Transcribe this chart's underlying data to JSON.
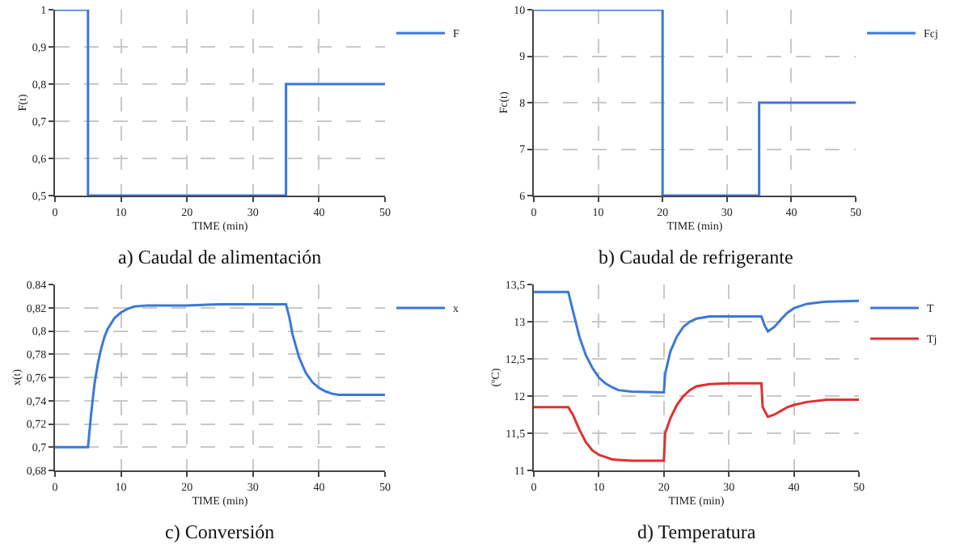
{
  "chart_data": [
    {
      "type": "step",
      "title": "a) Caudal de alimentación",
      "xlabel": "TIME (min)",
      "ylabel": "F(t)",
      "x": [
        0,
        5,
        35,
        50
      ],
      "xlim": [
        0,
        50
      ],
      "ylim": [
        0.5,
        1
      ],
      "xticks": [
        0,
        10,
        20,
        30,
        40,
        50
      ],
      "yticks": [
        {
          "value": 0.5,
          "label": "0,5"
        },
        {
          "value": 0.6,
          "label": "0,6"
        },
        {
          "value": 0.7,
          "label": "0,7"
        },
        {
          "value": 0.8,
          "label": "0,8"
        },
        {
          "value": 0.9,
          "label": "0,9"
        },
        1
      ],
      "grid": true,
      "legend": "top right",
      "series": [
        {
          "name": "F",
          "color": "#3b78d8",
          "values": [
            1,
            0.5,
            0.8,
            0.8
          ]
        }
      ]
    },
    {
      "type": "step",
      "title": "b) Caudal de refrigerante",
      "xlabel": "TIME (min)",
      "ylabel": "Fc(t)",
      "x": [
        0,
        20,
        35,
        50
      ],
      "xlim": [
        0,
        50
      ],
      "ylim": [
        6,
        10
      ],
      "xticks": [
        0,
        10,
        20,
        30,
        40,
        50
      ],
      "yticks": [
        6,
        7,
        8,
        9,
        10
      ],
      "grid": true,
      "legend": "top right",
      "series": [
        {
          "name": "Fcj",
          "color": "#3b78d8",
          "values": [
            10,
            6,
            8,
            8
          ]
        }
      ]
    },
    {
      "type": "line",
      "title": "c) Conversión",
      "xlabel": "TIME (min)",
      "ylabel": "x(t)",
      "x": [
        0,
        5,
        5.5,
        6,
        6.5,
        7,
        7.5,
        8,
        9,
        10,
        11,
        12,
        14,
        16,
        20,
        25,
        30,
        35,
        35.5,
        36,
        37,
        38,
        39,
        40,
        41,
        42,
        43,
        45,
        50
      ],
      "xlim": [
        0,
        50
      ],
      "ylim": [
        0.68,
        0.84
      ],
      "xticks": [
        0,
        10,
        20,
        30,
        40,
        50
      ],
      "yticks": [
        {
          "value": 0.68,
          "label": "0,68"
        },
        {
          "value": 0.7,
          "label": "0,7"
        },
        {
          "value": 0.72,
          "label": "0,72"
        },
        {
          "value": 0.74,
          "label": "0,74"
        },
        {
          "value": 0.76,
          "label": "0,76"
        },
        {
          "value": 0.78,
          "label": "0,78"
        },
        {
          "value": 0.8,
          "label": "0,8"
        },
        {
          "value": 0.82,
          "label": "0,82"
        },
        0.84
      ],
      "grid": true,
      "legend": "top right",
      "series": [
        {
          "name": "x",
          "color": "#3b78d8",
          "values": [
            0.7,
            0.7,
            0.73,
            0.755,
            0.772,
            0.785,
            0.795,
            0.802,
            0.811,
            0.816,
            0.819,
            0.821,
            0.822,
            0.822,
            0.822,
            0.823,
            0.823,
            0.823,
            0.812,
            0.797,
            0.777,
            0.764,
            0.756,
            0.751,
            0.748,
            0.746,
            0.745,
            0.745,
            0.745
          ]
        }
      ]
    },
    {
      "type": "line",
      "title": "d) Temperatura",
      "xlabel": "TIME (min)",
      "ylabel": "(ºC)",
      "xlim": [
        0,
        50
      ],
      "ylim": [
        11,
        13.5
      ],
      "xticks": [
        0,
        10,
        20,
        30,
        40,
        50
      ],
      "yticks": [
        11,
        {
          "value": 11.5,
          "label": "11,5"
        },
        12,
        {
          "value": 12.5,
          "label": "12,5"
        },
        13,
        {
          "value": 13.5,
          "label": "13,5"
        }
      ],
      "grid": true,
      "legend": "top right",
      "series": [
        {
          "name": "T",
          "color": "#3b78d8",
          "x": [
            0,
            5.3,
            6,
            7,
            8,
            9,
            10,
            11,
            12,
            13,
            15,
            20,
            20.2,
            21,
            22,
            23,
            24,
            25,
            27,
            30,
            35,
            35.5,
            36,
            37,
            38,
            39,
            40,
            42,
            45,
            50
          ],
          "values": [
            13.4,
            13.4,
            13.15,
            12.8,
            12.55,
            12.38,
            12.25,
            12.17,
            12.12,
            12.08,
            12.06,
            12.05,
            12.3,
            12.6,
            12.8,
            12.93,
            13,
            13.04,
            13.07,
            13.07,
            13.07,
            12.95,
            12.87,
            12.93,
            13.03,
            13.12,
            13.18,
            13.24,
            13.27,
            13.28
          ]
        },
        {
          "name": "Tj",
          "color": "#e03030",
          "x": [
            0,
            5.3,
            6,
            7,
            8,
            9,
            10,
            11,
            12,
            13,
            15,
            20,
            20.2,
            21,
            22,
            23,
            24,
            25,
            27,
            30,
            35,
            35.2,
            36,
            37,
            38,
            39,
            40,
            42,
            45,
            50
          ],
          "values": [
            11.85,
            11.85,
            11.75,
            11.55,
            11.38,
            11.27,
            11.21,
            11.18,
            11.15,
            11.14,
            11.13,
            11.13,
            11.5,
            11.7,
            11.88,
            12,
            12.08,
            12.13,
            12.16,
            12.17,
            12.17,
            11.85,
            11.72,
            11.75,
            11.8,
            11.85,
            11.88,
            11.92,
            11.95,
            11.95
          ]
        }
      ]
    }
  ]
}
